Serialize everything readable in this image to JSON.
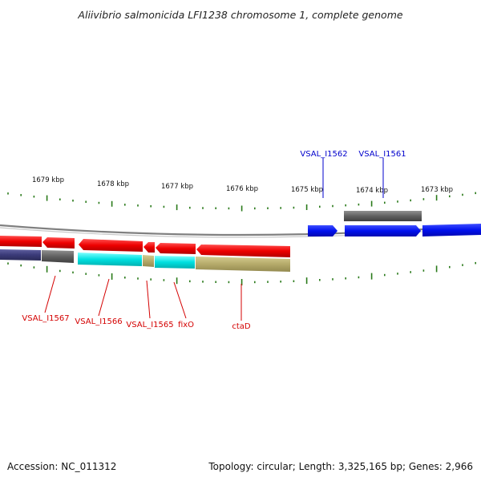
{
  "title": "Aliivibrio salmonicida LFI1238 chromosome 1, complete genome",
  "footer": {
    "accession": "Accession: NC_011312",
    "summary": "Topology: circular; Length: 3,325,165 bp; Genes: 2,966"
  },
  "scale_labels": [
    "1679 kbp",
    "1678 kbp",
    "1677 kbp",
    "1676 kbp",
    "1675 kbp",
    "1674 kbp",
    "1673 kbp"
  ],
  "gene_labels_upper": [
    "VSAL_I1562",
    "VSAL_I1561"
  ],
  "gene_labels_lower": [
    "VSAL_I1567",
    "VSAL_I1566",
    "VSAL_I1565",
    "fixO",
    "ctaD"
  ],
  "colors": {
    "forward_gene": "#0010ee",
    "reverse_gene": "#ee0000",
    "forward_category": "#606060",
    "reverse_category_1": "#3a3a78",
    "reverse_category_2": "#707070",
    "reverse_category_3": "#00e0e0",
    "reverse_category_4": "#b5aa6a",
    "tick": "#2a7a1a",
    "backbone": "#909090"
  }
}
